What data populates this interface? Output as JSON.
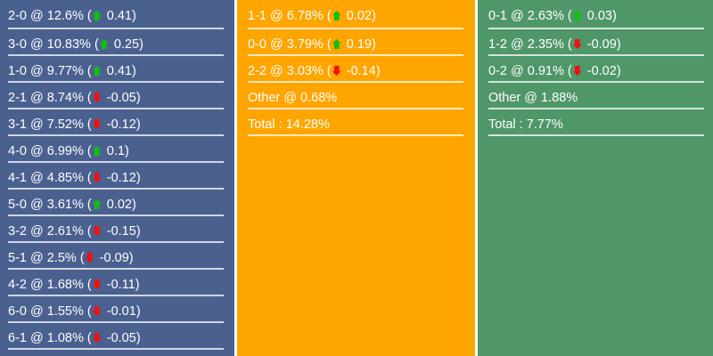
{
  "colors": {
    "home": "#4a6190",
    "draw": "#ffa500",
    "away": "#4f9768",
    "up": "#10c010",
    "down": "#f01010"
  },
  "columns": [
    {
      "name": "home",
      "rows": [
        {
          "score": "2-0",
          "percent": "12.6%",
          "change": "0.41",
          "direction": "up"
        },
        {
          "score": "3-0",
          "percent": "10.83%",
          "change": "0.25",
          "direction": "up"
        },
        {
          "score": "1-0",
          "percent": "9.77%",
          "change": "0.41",
          "direction": "up"
        },
        {
          "score": "2-1",
          "percent": "8.74%",
          "change": "-0.05",
          "direction": "down"
        },
        {
          "score": "3-1",
          "percent": "7.52%",
          "change": "-0.12",
          "direction": "down"
        },
        {
          "score": "4-0",
          "percent": "6.99%",
          "change": "0.1",
          "direction": "up"
        },
        {
          "score": "4-1",
          "percent": "4.85%",
          "change": "-0.12",
          "direction": "down"
        },
        {
          "score": "5-0",
          "percent": "3.61%",
          "change": "0.02",
          "direction": "up"
        },
        {
          "score": "3-2",
          "percent": "2.61%",
          "change": "-0.15",
          "direction": "down"
        },
        {
          "score": "5-1",
          "percent": "2.5%",
          "change": "-0.09",
          "direction": "down"
        },
        {
          "score": "4-2",
          "percent": "1.68%",
          "change": "-0.11",
          "direction": "down"
        },
        {
          "score": "6-0",
          "percent": "1.55%",
          "change": "-0.01",
          "direction": "down"
        },
        {
          "score": "6-1",
          "percent": "1.08%",
          "change": "-0.05",
          "direction": "down"
        }
      ]
    },
    {
      "name": "draw",
      "rows": [
        {
          "score": "1-1",
          "percent": "6.78%",
          "change": "0.02",
          "direction": "up"
        },
        {
          "score": "0-0",
          "percent": "3.79%",
          "change": "0.19",
          "direction": "up"
        },
        {
          "score": "2-2",
          "percent": "3.03%",
          "change": "-0.14",
          "direction": "down"
        }
      ],
      "other": "Other @ 0.68%",
      "total": "Total : 14.28%"
    },
    {
      "name": "away",
      "rows": [
        {
          "score": "0-1",
          "percent": "2.63%",
          "change": "0.03",
          "direction": "up"
        },
        {
          "score": "1-2",
          "percent": "2.35%",
          "change": "-0.09",
          "direction": "down"
        },
        {
          "score": "0-2",
          "percent": "0.91%",
          "change": "-0.02",
          "direction": "down"
        }
      ],
      "other": "Other @ 1.88%",
      "total": "Total : 7.77%"
    }
  ]
}
